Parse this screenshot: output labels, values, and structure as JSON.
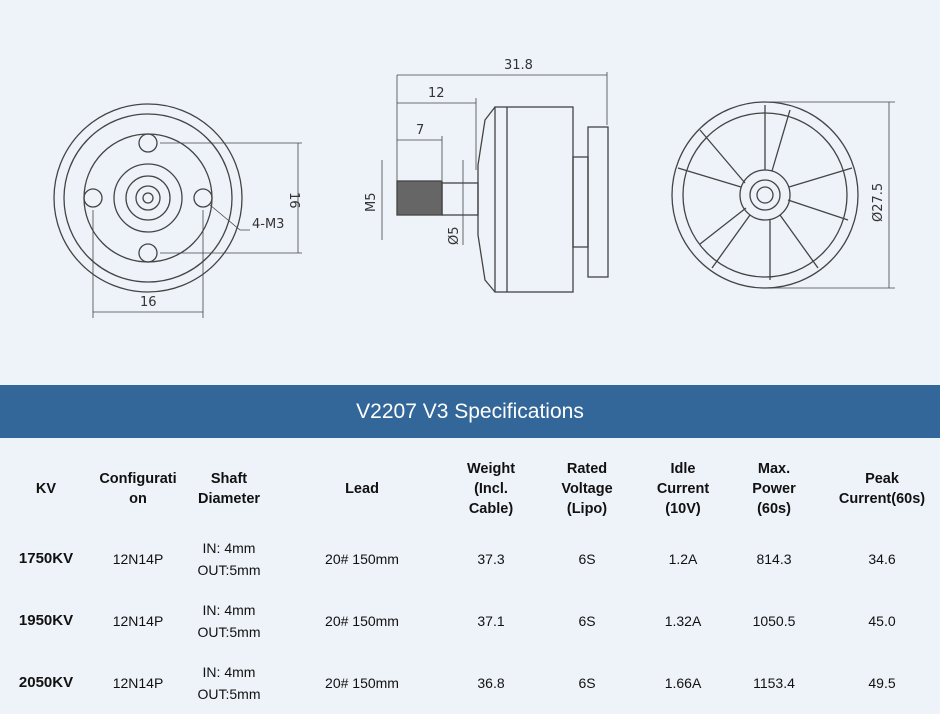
{
  "drawing_labels": {
    "front_width": "16",
    "front_height": "16",
    "holes": "4-M3",
    "overall_length": "31.8",
    "shaft_length": "12",
    "thread_length": "7",
    "thread": "M5",
    "shaft_diameter": "Ø5",
    "bell_diameter": "Ø27.5"
  },
  "title": "V2207 V3 Specifications",
  "columns": [
    "KV",
    "Configurati on",
    "Shaft Diameter",
    "Lead",
    "Weight (Incl. Cable)",
    "Rated Voltage (Lipo)",
    "Idle Current (10V)",
    "Max. Power (60s)",
    "Peak Current(60s)"
  ],
  "rows": [
    {
      "kv": "1750KV",
      "config": "12N14P",
      "shaft_in": "IN: 4mm",
      "shaft_out": "OUT:5mm",
      "lead": "20# 150mm",
      "weight": "37.3",
      "voltage": "6S",
      "idle": "1.2A",
      "power": "814.3",
      "peak": "34.6"
    },
    {
      "kv": "1950KV",
      "config": "12N14P",
      "shaft_in": "IN: 4mm",
      "shaft_out": "OUT:5mm",
      "lead": "20# 150mm",
      "weight": "37.1",
      "voltage": "6S",
      "idle": "1.32A",
      "power": "1050.5",
      "peak": "45.0"
    },
    {
      "kv": "2050KV",
      "config": "12N14P",
      "shaft_in": "IN: 4mm",
      "shaft_out": "OUT:5mm",
      "lead": "20# 150mm",
      "weight": "36.8",
      "voltage": "6S",
      "idle": "1.66A",
      "power": "1153.4",
      "peak": "49.5"
    }
  ]
}
